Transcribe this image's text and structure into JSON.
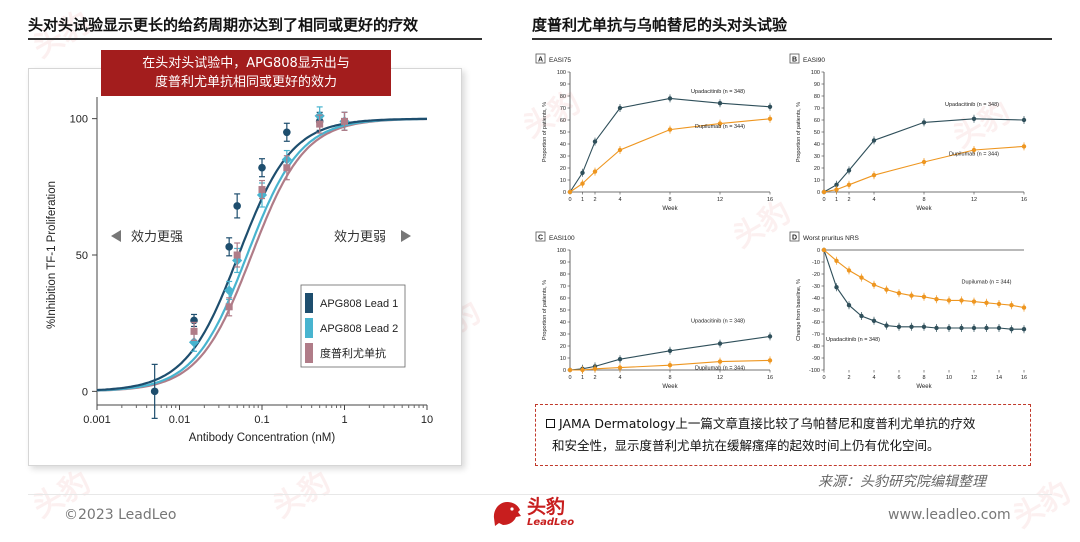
{
  "left_title": "头对头试验显示更长的给药周期亦达到了相同或更好的疗效",
  "right_title": "度普利尤单抗与乌帕替尼的头对头试验",
  "callout_text": [
    "在头对头试验中，APG808显示出与",
    "度普利尤单抗相同或更好的效力"
  ],
  "colors": {
    "lead1": "#1e4e6e",
    "lead2": "#48b4cf",
    "dupi": "#b07c88",
    "upa": "#2f4f5a",
    "dupi_jama": "#ee9620",
    "accent": "#a31d1d"
  },
  "jama_note": [
    "JAMA Dermatology上一篇文章直接比较了乌帕替尼和度普利尤单抗的疗效",
    "和安全性，显示度普利尤单抗在缓解瘙痒的起效时间上仍有优化空间。"
  ],
  "source_text": "来源：头豹研究院编辑整理",
  "copyright": "©2023 LeadLeo",
  "website": "www.leadleo.com",
  "logo": {
    "cn": "头豹",
    "en": "LeadLeo"
  },
  "watermark": "头豹",
  "chart_data": [
    {
      "type": "scatter",
      "xscale": "log",
      "xlabel": "Antibody Concentration (nM)",
      "ylabel": "%Inhibition TF-1 Proliferation",
      "xlim": [
        0.001,
        10
      ],
      "ylim": [
        -5,
        105
      ],
      "x_ticks": [
        "0.001",
        "0.01",
        "0.1",
        "1",
        "10"
      ],
      "y_ticks": [
        "0",
        "50",
        "100"
      ],
      "arrow_left": "效力更强",
      "arrow_right": "效力更弱",
      "legend": [
        "APG808 Lead 1",
        "APG808 Lead 2",
        "度普利尤单抗"
      ],
      "legend_position": "inside, lower-right",
      "series": [
        {
          "name": "APG808 Lead 1",
          "ec50": 0.052,
          "hill": 1.35,
          "points": [
            [
              0.005,
              0
            ],
            [
              0.015,
              26
            ],
            [
              0.04,
              53
            ],
            [
              0.05,
              68
            ],
            [
              0.1,
              82
            ],
            [
              0.2,
              95
            ],
            [
              0.5,
              99
            ],
            [
              1.0,
              99
            ]
          ]
        },
        {
          "name": "APG808 Lead 2",
          "ec50": 0.066,
          "hill": 1.35,
          "points": [
            [
              0.015,
              18
            ],
            [
              0.04,
              37
            ],
            [
              0.05,
              48
            ],
            [
              0.1,
              72
            ],
            [
              0.2,
              85
            ],
            [
              0.5,
              101
            ],
            [
              1.0,
              99
            ]
          ]
        },
        {
          "name": "度普利尤单抗",
          "ec50": 0.075,
          "hill": 1.35,
          "points": [
            [
              0.015,
              22
            ],
            [
              0.04,
              31
            ],
            [
              0.05,
              50
            ],
            [
              0.1,
              74
            ],
            [
              0.2,
              82
            ],
            [
              0.5,
              98
            ],
            [
              1.0,
              99
            ]
          ]
        }
      ]
    },
    {
      "type": "line",
      "panel": "A",
      "title": "EASI75",
      "xlabel": "Week",
      "ylabel": "Proportion of patients, %",
      "x": [
        0,
        1,
        2,
        4,
        8,
        12,
        16
      ],
      "ylim": [
        0,
        100
      ],
      "y_ticks": [
        0,
        10,
        20,
        30,
        40,
        50,
        60,
        70,
        80,
        90,
        100
      ],
      "series": [
        {
          "name": "Upadacitinib (n = 348)",
          "values": [
            0,
            16,
            42,
            70,
            78,
            74,
            71
          ]
        },
        {
          "name": "Dupilumab (n = 344)",
          "values": [
            0,
            7,
            17,
            35,
            52,
            57,
            61
          ]
        }
      ]
    },
    {
      "type": "line",
      "panel": "B",
      "title": "EASI90",
      "xlabel": "Week",
      "ylabel": "Proportion of patients, %",
      "x": [
        0,
        1,
        2,
        4,
        8,
        12,
        16
      ],
      "ylim": [
        0,
        100
      ],
      "y_ticks": [
        0,
        10,
        20,
        30,
        40,
        50,
        60,
        70,
        80,
        90,
        100
      ],
      "series": [
        {
          "name": "Upadacitinib (n = 348)",
          "values": [
            0,
            6,
            18,
            43,
            58,
            61,
            60
          ]
        },
        {
          "name": "Dupilumab (n = 344)",
          "values": [
            0,
            2,
            6,
            14,
            25,
            35,
            38
          ]
        }
      ]
    },
    {
      "type": "line",
      "panel": "C",
      "title": "EASI100",
      "xlabel": "Week",
      "ylabel": "Proportion of patients, %",
      "x": [
        0,
        1,
        2,
        4,
        8,
        12,
        16
      ],
      "ylim": [
        0,
        100
      ],
      "y_ticks": [
        0,
        10,
        20,
        30,
        40,
        50,
        60,
        70,
        80,
        90,
        100
      ],
      "series": [
        {
          "name": "Upadacitinib (n = 348)",
          "values": [
            0,
            1,
            3,
            9,
            16,
            22,
            28
          ]
        },
        {
          "name": "Dupilumab (n = 344)",
          "values": [
            0,
            0,
            1,
            2,
            4,
            7,
            8
          ]
        }
      ]
    },
    {
      "type": "line",
      "panel": "D",
      "title": "Worst pruritus NRS",
      "xlabel": "Week",
      "ylabel": "Change from baseline, %",
      "x": [
        0,
        1,
        2,
        3,
        4,
        5,
        6,
        7,
        8,
        9,
        10,
        11,
        12,
        13,
        14,
        15,
        16
      ],
      "ylim": [
        -100,
        0
      ],
      "y_ticks": [
        0,
        -10,
        -20,
        -30,
        -40,
        -50,
        -60,
        -70,
        -80,
        -90,
        -100
      ],
      "series": [
        {
          "name": "Upadacitinib (n = 348)",
          "values": [
            0,
            -31,
            -46,
            -55,
            -59,
            -63,
            -64,
            -64,
            -64,
            -65,
            -65,
            -65,
            -65,
            -65,
            -65,
            -66,
            -66
          ]
        },
        {
          "name": "Dupilumab (n = 344)",
          "values": [
            0,
            -9,
            -17,
            -23,
            -29,
            -33,
            -36,
            -38,
            -39,
            -41,
            -42,
            -42,
            -43,
            -44,
            -45,
            -46,
            -48
          ]
        }
      ]
    }
  ]
}
